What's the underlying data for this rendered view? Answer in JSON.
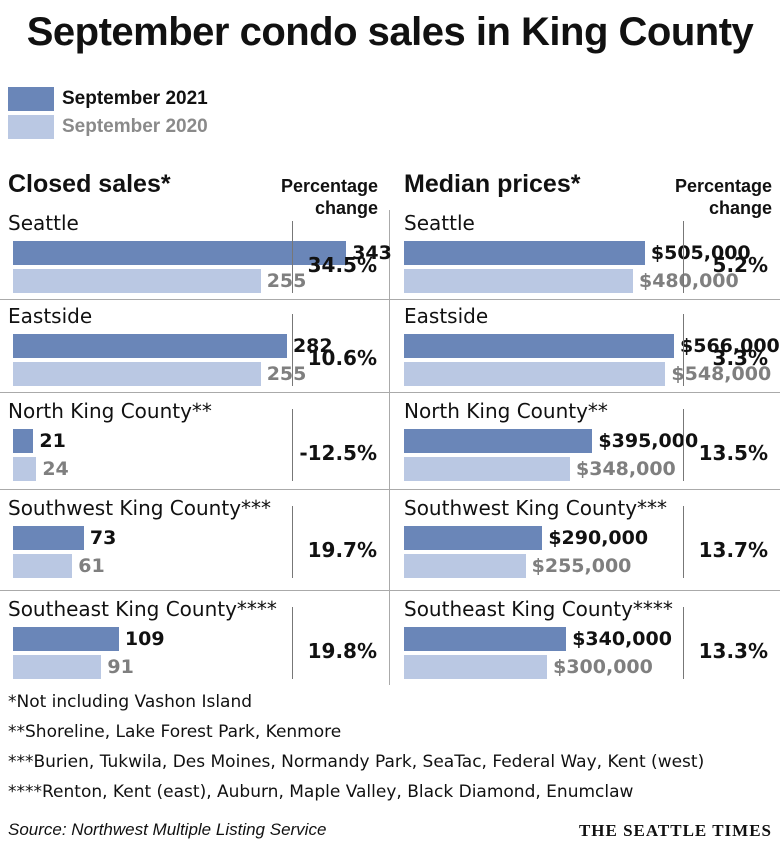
{
  "title": "September condo sales in King County",
  "colors": {
    "current": "#6a86b8",
    "previous": "#bac8e3"
  },
  "legend": [
    {
      "label": "September 2021",
      "series": "current"
    },
    {
      "label": "September 2020",
      "series": "previous"
    }
  ],
  "chart_data": [
    {
      "type": "bar",
      "title": "Closed sales*",
      "pct_header": [
        "Percentage",
        "change"
      ],
      "categories": [
        "Seattle",
        "Eastside",
        "North King County**",
        "Southwest King County***",
        "Southeast King County****"
      ],
      "series": [
        {
          "name": "September 2021",
          "values": [
            343,
            282,
            21,
            73,
            109
          ],
          "labels": [
            "343",
            "282",
            "21",
            "73",
            "109"
          ]
        },
        {
          "name": "September 2020",
          "values": [
            255,
            255,
            24,
            61,
            91
          ],
          "labels": [
            "255",
            "255",
            "24",
            "61",
            "91"
          ]
        }
      ],
      "percent_change": [
        "34.5%",
        "10.6%",
        "-12.5%",
        "19.7%",
        "19.8%"
      ],
      "xlim": [
        0,
        350
      ]
    },
    {
      "type": "bar",
      "title": "Median prices*",
      "pct_header": [
        "Percentage",
        "change"
      ],
      "categories": [
        "Seattle",
        "Eastside",
        "North King County**",
        "Southwest King County***",
        "Southeast King County****"
      ],
      "series": [
        {
          "name": "September 2021",
          "values": [
            505000,
            566000,
            395000,
            290000,
            340000
          ],
          "labels": [
            "$505,000",
            "$566,000",
            "$395,000",
            "$290,000",
            "$340,000"
          ]
        },
        {
          "name": "September 2020",
          "values": [
            480000,
            548000,
            348000,
            255000,
            300000
          ],
          "labels": [
            "$480,000",
            "$548,000",
            "$348,000",
            "$255,000",
            "$300,000"
          ]
        }
      ],
      "percent_change": [
        "5.2%",
        "3.3%",
        "13.5%",
        "13.7%",
        "13.3%"
      ],
      "xlim": [
        0,
        566000
      ]
    }
  ],
  "notes": [
    "*Not including Vashon Island",
    "**Shoreline, Lake Forest Park, Kenmore",
    "***Burien, Tukwila, Des Moines, Normandy Park, SeaTac, Federal Way, Kent (west)",
    "****Renton, Kent (east), Auburn, Maple Valley, Black Diamond, Enumclaw"
  ],
  "source": "Source: Northwest Multiple Listing Service",
  "brand": "THE SEATTLE TIMES"
}
